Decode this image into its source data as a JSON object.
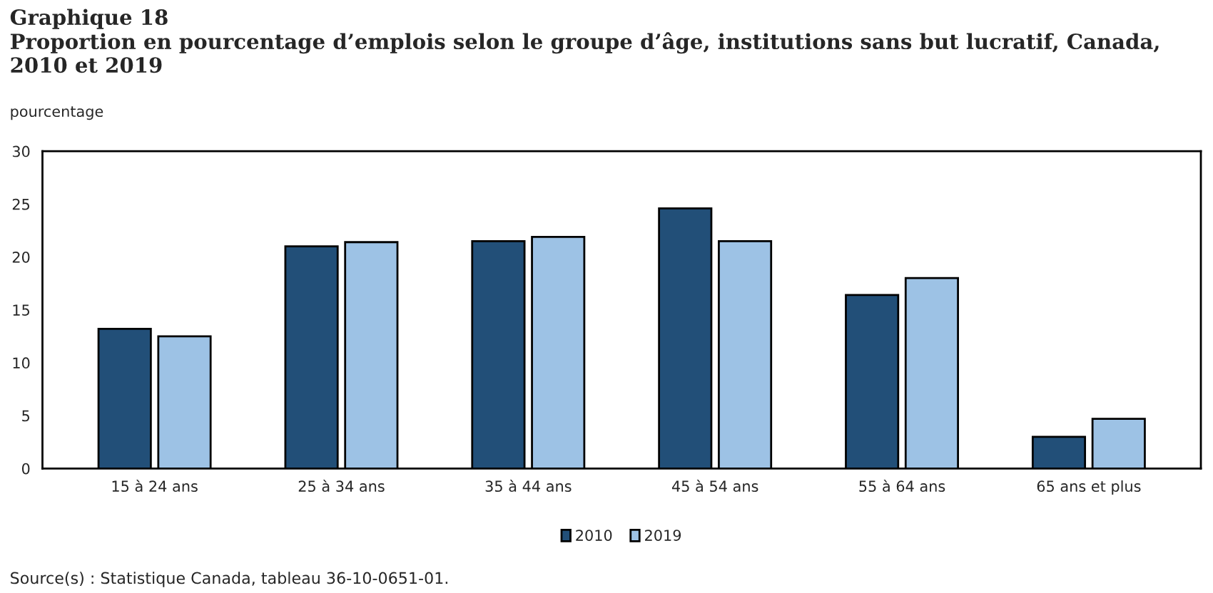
{
  "chart_data": {
    "type": "bar",
    "title": "Graphique 18\nProportion en pourcentage d’emplois selon le groupe d’âge, institutions sans but lucratif, Canada,\n2010 et 2019",
    "ylabel": "pourcentage",
    "categories": [
      "15 à 24 ans",
      "25 à 34 ans",
      "35 à 44 ans",
      "45 à 54 ans",
      "55 à 64 ans",
      "65 ans et plus"
    ],
    "series": [
      {
        "name": "2010",
        "color": "#224f78",
        "values": [
          13.2,
          21.0,
          21.5,
          24.6,
          16.4,
          3.0
        ]
      },
      {
        "name": "2019",
        "color": "#9dc2e5",
        "values": [
          12.5,
          21.4,
          21.9,
          21.5,
          18.0,
          4.7
        ]
      }
    ],
    "ylim": [
      0,
      30
    ],
    "yticks": [
      0,
      5,
      10,
      15,
      20,
      25,
      30
    ],
    "grid": false,
    "legend": "bottom",
    "annotations": [
      "Source(s) : Statistique Canada, tableau 36-10-0651-01."
    ]
  }
}
